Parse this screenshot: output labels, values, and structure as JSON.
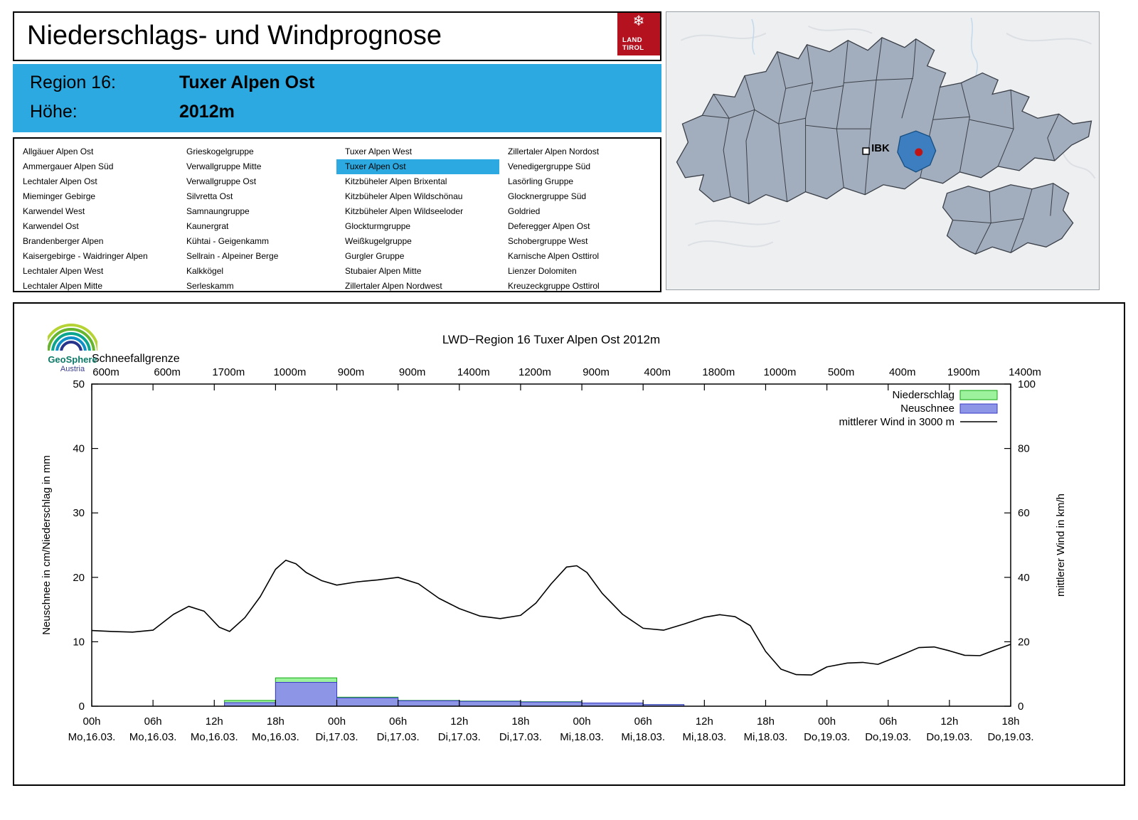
{
  "header": {
    "title": "Niederschlags- und Windprognose",
    "logo": {
      "line1": "LAND",
      "line2": "TIROL"
    }
  },
  "region_info": {
    "rows": [
      {
        "label": "Region 16:",
        "value": "Tuxer Alpen Ost"
      },
      {
        "label": "Höhe:",
        "value": "2012m"
      }
    ],
    "accent_color": "#2ba9e0"
  },
  "region_list": {
    "selected": "Tuxer Alpen Ost",
    "columns": [
      [
        "Allgäuer Alpen Ost",
        "Ammergauer Alpen Süd",
        "Lechtaler Alpen Ost",
        "Mieminger Gebirge",
        "Karwendel West",
        "Karwendel Ost",
        "Brandenberger Alpen",
        "Kaisergebirge - Waidringer Alpen",
        "Lechtaler Alpen West",
        "Lechtaler Alpen Mitte"
      ],
      [
        "Grieskogelgruppe",
        "Verwallgruppe Mitte",
        "Verwallgruppe Ost",
        "Silvretta Ost",
        "Samnaungruppe",
        "Kaunergrat",
        "Kühtai - Geigenkamm",
        "Sellrain - Alpeiner Berge",
        "Kalkkögel",
        "Serleskamm"
      ],
      [
        "Tuxer Alpen West",
        "Tuxer Alpen Ost",
        "Kitzbüheler Alpen Brixental",
        "Kitzbüheler Alpen Wildschönau",
        "Kitzbüheler Alpen Wildseeloder",
        "Glockturmgruppe",
        "Weißkugelgruppe",
        "Gurgler Gruppe",
        "Stubaier Alpen Mitte",
        "Zillertaler Alpen Nordwest"
      ],
      [
        "Zillertaler Alpen Nordost",
        "Venedigergruppe Süd",
        "Lasörling Gruppe",
        "Glocknergruppe Süd",
        "Goldried",
        "Deferegger Alpen Ost",
        "Schobergruppe West",
        "Karnische Alpen Osttirol",
        "Lienzer Dolomiten",
        "Kreuzeckgruppe Osttirol"
      ]
    ]
  },
  "map": {
    "city_label": "IBK",
    "highlighted_region": "Tuxer Alpen Ost",
    "colors": {
      "region_fill": "#a2adbd",
      "border": "#3a3f47",
      "highlight": "#3d7ec0",
      "marker_dot": "#c01414"
    }
  },
  "geosphere": {
    "line1": "GeoSphere",
    "line2": "Austria"
  },
  "chart_data": {
    "type": "composite-bar-line",
    "title": "LWD−Region 16 Tuxer Alpen Ost 2012m",
    "top_axis_label": "Schneefallgrenze",
    "snowfall_line_labels": [
      "600m",
      "600m",
      "1700m",
      "1000m",
      "900m",
      "900m",
      "1400m",
      "1200m",
      "900m",
      "400m",
      "1800m",
      "1000m",
      "500m",
      "400m",
      "1900m",
      "1400m"
    ],
    "ylabel_left": "Neuschnee in cm/Niederschlag in mm",
    "ylabel_right": "mittlerer Wind in km/h",
    "ylim_left": [
      0,
      50
    ],
    "ylim_right": [
      0,
      100
    ],
    "yticks_left": [
      0,
      10,
      20,
      30,
      40,
      50
    ],
    "yticks_right": [
      0,
      20,
      40,
      60,
      80,
      100
    ],
    "x_hours_range": [
      0,
      90
    ],
    "x_ticks": [
      {
        "t": 0,
        "time": "00h",
        "date": "Mo,16.03."
      },
      {
        "t": 6,
        "time": "06h",
        "date": "Mo,16.03."
      },
      {
        "t": 12,
        "time": "12h",
        "date": "Mo,16.03."
      },
      {
        "t": 18,
        "time": "18h",
        "date": "Mo,16.03."
      },
      {
        "t": 24,
        "time": "00h",
        "date": "Di,17.03."
      },
      {
        "t": 30,
        "time": "06h",
        "date": "Di,17.03."
      },
      {
        "t": 36,
        "time": "12h",
        "date": "Di,17.03."
      },
      {
        "t": 42,
        "time": "18h",
        "date": "Di,17.03."
      },
      {
        "t": 48,
        "time": "00h",
        "date": "Mi,18.03."
      },
      {
        "t": 54,
        "time": "06h",
        "date": "Mi,18.03."
      },
      {
        "t": 60,
        "time": "12h",
        "date": "Mi,18.03."
      },
      {
        "t": 66,
        "time": "18h",
        "date": "Mi,18.03."
      },
      {
        "t": 72,
        "time": "00h",
        "date": "Do,19.03."
      },
      {
        "t": 78,
        "time": "06h",
        "date": "Do,19.03."
      },
      {
        "t": 84,
        "time": "12h",
        "date": "Do,19.03."
      },
      {
        "t": 90,
        "time": "18h",
        "date": "Do,19.03."
      }
    ],
    "legend": [
      {
        "label": "Niederschlag",
        "type": "box",
        "fill": "#9df29d",
        "stroke": "#0faa0f"
      },
      {
        "label": "Neuschnee",
        "type": "box",
        "fill": "#8d95e6",
        "stroke": "#3a3ac8"
      },
      {
        "label": "mittlerer Wind in 3000 m",
        "type": "line",
        "stroke": "#000000"
      }
    ],
    "bars_6h": [
      {
        "start": 13,
        "end": 18,
        "precip_mm": 0.9,
        "snow_cm": 0.55
      },
      {
        "start": 18,
        "end": 24,
        "precip_mm": 4.4,
        "snow_cm": 3.7
      },
      {
        "start": 24,
        "end": 30,
        "precip_mm": 1.4,
        "snow_cm": 1.3
      },
      {
        "start": 30,
        "end": 36,
        "precip_mm": 0.9,
        "snow_cm": 0.85
      },
      {
        "start": 36,
        "end": 42,
        "precip_mm": 0.8,
        "snow_cm": 0.75
      },
      {
        "start": 42,
        "end": 48,
        "precip_mm": 0.7,
        "snow_cm": 0.65
      },
      {
        "start": 48,
        "end": 54,
        "precip_mm": 0.5,
        "snow_cm": 0.5
      },
      {
        "start": 54,
        "end": 58,
        "precip_mm": 0.25,
        "snow_cm": 0.25
      }
    ],
    "wind_series": {
      "name": "mittlerer Wind in 3000 m",
      "units": "km/h",
      "points": [
        [
          0,
          23.5
        ],
        [
          2,
          23.2
        ],
        [
          4,
          23.0
        ],
        [
          6,
          23.6
        ],
        [
          8,
          28.5
        ],
        [
          9.5,
          31.0
        ],
        [
          11,
          29.5
        ],
        [
          12.5,
          24.5
        ],
        [
          13.5,
          23.2
        ],
        [
          15,
          27.5
        ],
        [
          16.5,
          34
        ],
        [
          18,
          42.5
        ],
        [
          19,
          45.3
        ],
        [
          20,
          44.2
        ],
        [
          21,
          41.5
        ],
        [
          22.5,
          39
        ],
        [
          24,
          37.6
        ],
        [
          26,
          38.6
        ],
        [
          28,
          39.2
        ],
        [
          30,
          40.0
        ],
        [
          32,
          38
        ],
        [
          34,
          33.5
        ],
        [
          36,
          30.3
        ],
        [
          38,
          28
        ],
        [
          40,
          27.2
        ],
        [
          42,
          28.2
        ],
        [
          43.5,
          32
        ],
        [
          45,
          38
        ],
        [
          46.5,
          43.2
        ],
        [
          47.5,
          43.6
        ],
        [
          48.5,
          41.5
        ],
        [
          50,
          35
        ],
        [
          52,
          28.5
        ],
        [
          54,
          24.2
        ],
        [
          56,
          23.6
        ],
        [
          58,
          25.5
        ],
        [
          60,
          27.6
        ],
        [
          61.5,
          28.4
        ],
        [
          63,
          27.8
        ],
        [
          64.5,
          25
        ],
        [
          66,
          17
        ],
        [
          67.5,
          11.5
        ],
        [
          69,
          9.8
        ],
        [
          70.5,
          9.7
        ],
        [
          72,
          12.2
        ],
        [
          74,
          13.4
        ],
        [
          75.5,
          13.6
        ],
        [
          77,
          13.0
        ],
        [
          79,
          15.5
        ],
        [
          81,
          18.2
        ],
        [
          82.5,
          18.4
        ],
        [
          84,
          17.2
        ],
        [
          85.5,
          15.8
        ],
        [
          87,
          15.7
        ],
        [
          88.5,
          17.5
        ],
        [
          90,
          19.2
        ]
      ]
    }
  }
}
